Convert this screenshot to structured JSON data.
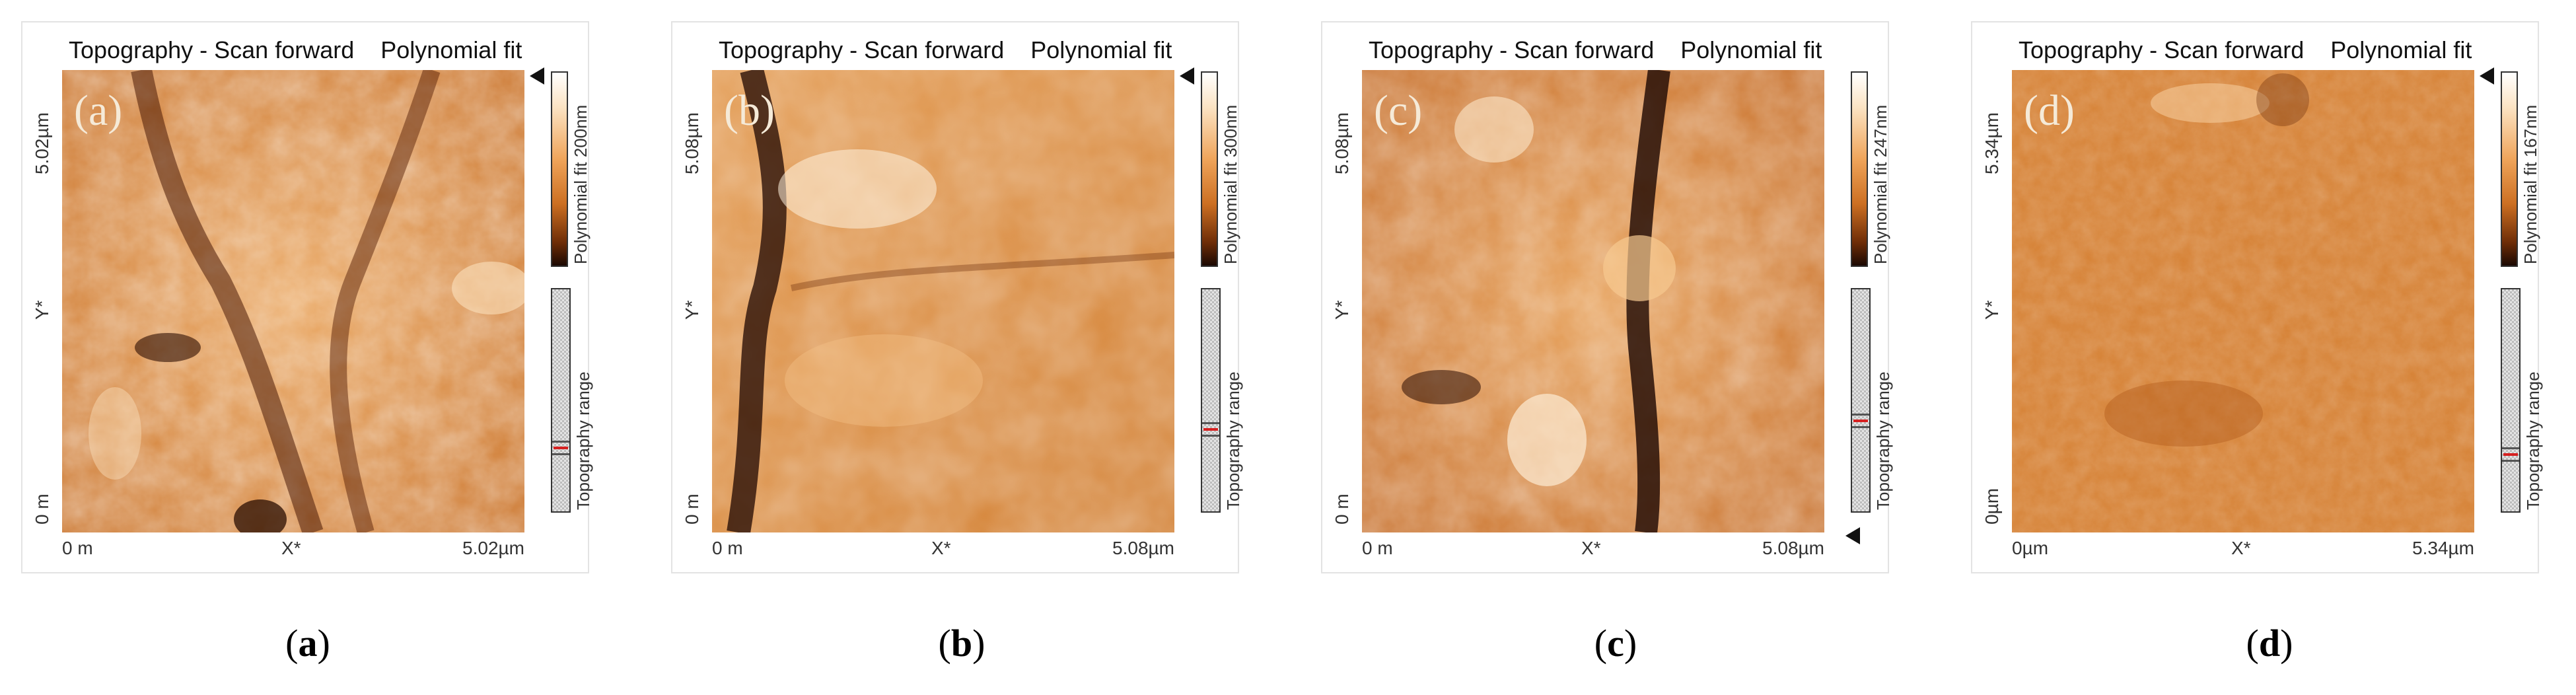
{
  "panels": [
    {
      "id": "a",
      "title_left": "Topography - Scan forward",
      "title_right": "Polynomial fit",
      "sublabel": "(a)",
      "y_max": "5.02µm",
      "y_label": "Y*",
      "y_min": "0 m",
      "x_min": "0 m",
      "x_label": "X*",
      "x_max": "5.02µm",
      "colorbar_label": "Polynomial fit 200nm",
      "range_label": "Topography range",
      "range_position": 0.27,
      "caption_open": "(",
      "caption_letter": "a",
      "caption_close": ")"
    },
    {
      "id": "b",
      "title_left": "Topography - Scan forward",
      "title_right": "Polynomial fit",
      "sublabel": "(b)",
      "y_max": "5.08µm",
      "y_label": "Y*",
      "y_min": "0 m",
      "x_min": "0 m",
      "x_label": "X*",
      "x_max": "5.08µm",
      "colorbar_label": "Polynomial fit 300nm",
      "range_label": "Topography range",
      "range_position": 0.36,
      "caption_open": "(",
      "caption_letter": "b",
      "caption_close": ")"
    },
    {
      "id": "c",
      "title_left": "Topography - Scan forward",
      "title_right": "Polynomial fit",
      "sublabel": "(c)",
      "y_max": "5.08µm",
      "y_label": "Y*",
      "y_min": "0 m",
      "x_min": "0 m",
      "x_label": "X*",
      "x_max": "5.08µm",
      "colorbar_label": "Polynomial fit 247nm",
      "range_label": "Topography range",
      "range_position": 0.4,
      "caption_open": "(",
      "caption_letter": "c",
      "caption_close": ")"
    },
    {
      "id": "d",
      "title_left": "Topography - Scan forward",
      "title_right": "Polynomial fit",
      "sublabel": "(d)",
      "y_max": "5.34µm",
      "y_label": "Y*",
      "y_min": "0µm",
      "x_min": "0µm",
      "x_label": "X*",
      "x_max": "5.34µm",
      "colorbar_label": "Polynomial fit 167nm",
      "range_label": "Topography range",
      "range_position": 0.24,
      "caption_open": "(",
      "caption_letter": "d",
      "caption_close": ")"
    }
  ],
  "colors": {
    "topography_light": "#f7d7a8",
    "topography_mid": "#dd8a3a",
    "topography_dark": "#3a1605",
    "range_marker": "#d62020"
  }
}
